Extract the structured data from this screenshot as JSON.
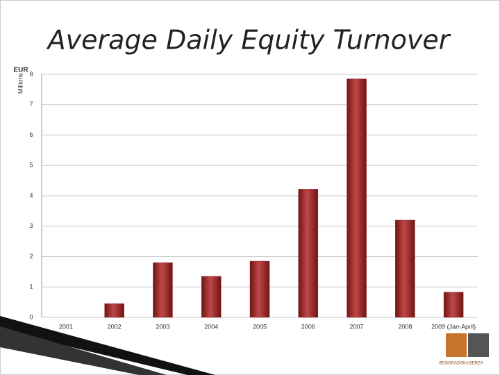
{
  "chart_data": {
    "type": "bar",
    "title": "Average Daily Equity Turnover",
    "y_unit": "EUR",
    "y_label": "Millions",
    "categories": [
      "2001",
      "2002",
      "2003",
      "2004",
      "2005",
      "2006",
      "2007",
      "2008",
      "2009 (Jan-April)"
    ],
    "values": [
      0,
      0.45,
      1.8,
      1.35,
      1.85,
      4.22,
      7.85,
      3.2,
      0.83
    ],
    "color": "#9b2a2a",
    "ylim": [
      0,
      8
    ],
    "yticks": [
      0,
      1,
      2,
      3,
      4,
      5,
      6,
      7,
      8
    ],
    "grid": true
  },
  "logo": {
    "text": "BEOGRADSKA BERZA"
  }
}
